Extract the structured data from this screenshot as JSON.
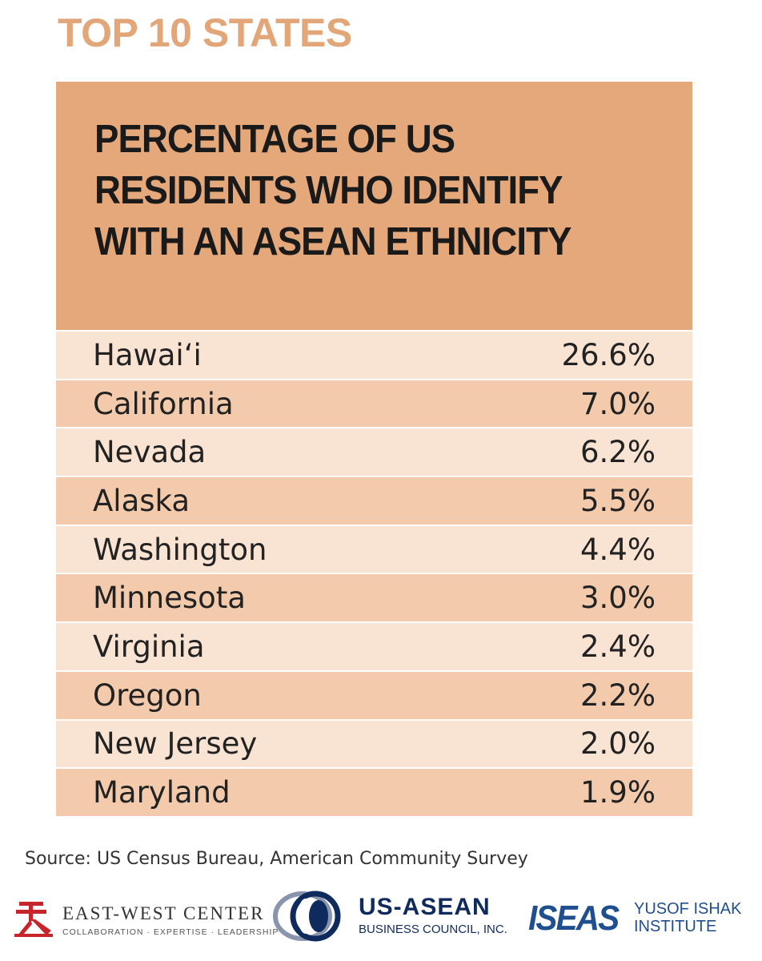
{
  "header": {
    "kicker": "TOP 10 STATES"
  },
  "chart_data": {
    "type": "table",
    "title": "PERCENTAGE OF US RESIDENTS WHO IDENTIFY WITH AN ASEAN ETHNICITY",
    "categories": [
      "Hawai‘i",
      "California",
      "Nevada",
      "Alaska",
      "Washington",
      "Minnesota",
      "Virginia",
      "Oregon",
      "New Jersey",
      "Maryland"
    ],
    "values": [
      26.6,
      7.0,
      6.2,
      5.5,
      4.4,
      3.0,
      2.4,
      2.2,
      2.0,
      1.9
    ],
    "value_labels": [
      "26.6%",
      "7.0%",
      "6.2%",
      "5.5%",
      "4.4%",
      "3.0%",
      "2.4%",
      "2.2%",
      "2.0%",
      "1.9%"
    ]
  },
  "footer": {
    "source": "Source: US Census Bureau, American Community Survey",
    "logos": {
      "ewc_name": "EAST-WEST CENTER",
      "ewc_tagline": "COLLABORATION · EXPERTISE · LEADERSHIP",
      "usasean_name": "US-ASEAN",
      "usasean_sub": "BUSINESS COUNCIL, INC.",
      "iseas_mark": "ISEAS",
      "iseas_name_1": "YUSOF ISHAK",
      "iseas_name_2": "INSTITUTE"
    }
  },
  "colors": {
    "kicker": "#e3a679",
    "header_band": "#e4a87b",
    "row_light": "#f9e3d3",
    "row_dark": "#f3cbac",
    "ewc_red": "#c8242b",
    "usasean_navy": "#0f2a5c",
    "iseas_blue": "#1f4f8f"
  }
}
